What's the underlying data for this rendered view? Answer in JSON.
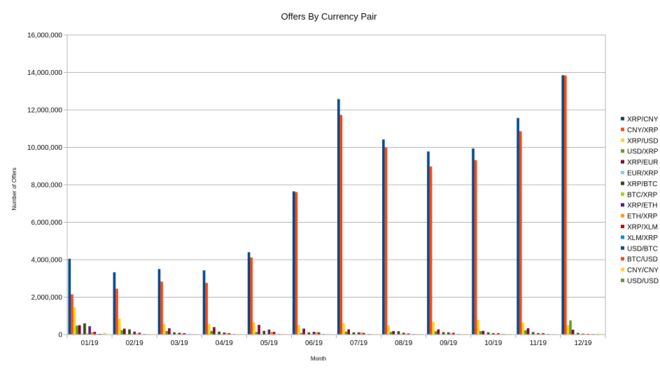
{
  "chart_data": {
    "type": "bar",
    "title": "Offers By Currency Pair",
    "xlabel": "Month",
    "ylabel": "Number of Offers",
    "ylim": [
      0,
      16000000
    ],
    "yticks": [
      "0",
      "2,000,000",
      "4,000,000",
      "6,000,000",
      "8,000,000",
      "10,000,000",
      "12,000,000",
      "14,000,000",
      "16,000,000"
    ],
    "categories": [
      "01/19",
      "02/19",
      "03/19",
      "04/19",
      "05/19",
      "06/19",
      "07/19",
      "08/19",
      "09/19",
      "10/19",
      "11/19",
      "12/19"
    ],
    "grid": "horizontal",
    "legend_position": "right",
    "series": [
      {
        "name": "XRP/CNY",
        "color": "#004586",
        "values": [
          4050000,
          3330000,
          3500000,
          3430000,
          4400000,
          7650000,
          12580000,
          10420000,
          9780000,
          9940000,
          11570000,
          13850000
        ]
      },
      {
        "name": "CNY/XRP",
        "color": "#ff420e",
        "values": [
          2150000,
          2450000,
          2830000,
          2760000,
          4120000,
          7610000,
          11730000,
          9990000,
          8980000,
          9320000,
          10860000,
          13840000
        ]
      },
      {
        "name": "XRP/USD",
        "color": "#ffd320",
        "values": [
          1450000,
          860000,
          550000,
          560000,
          650000,
          520000,
          600000,
          500000,
          680000,
          780000,
          650000,
          490000
        ]
      },
      {
        "name": "USD/XRP",
        "color": "#579d1c",
        "values": [
          480000,
          240000,
          190000,
          200000,
          140000,
          90000,
          160000,
          140000,
          180000,
          190000,
          230000,
          760000
        ]
      },
      {
        "name": "XRP/EUR",
        "color": "#7e0021",
        "values": [
          500000,
          320000,
          340000,
          400000,
          520000,
          320000,
          280000,
          190000,
          280000,
          200000,
          340000,
          260000
        ]
      },
      {
        "name": "EUR/XRP",
        "color": "#83caff",
        "values": [
          40000,
          30000,
          30000,
          30000,
          30000,
          20000,
          30000,
          20000,
          20000,
          20000,
          20000,
          20000
        ]
      },
      {
        "name": "XRP/BTC",
        "color": "#314004",
        "values": [
          600000,
          280000,
          120000,
          160000,
          200000,
          120000,
          120000,
          180000,
          130000,
          120000,
          130000,
          90000
        ]
      },
      {
        "name": "BTC/XRP",
        "color": "#aecf00",
        "values": [
          60000,
          40000,
          30000,
          30000,
          30000,
          30000,
          30000,
          30000,
          30000,
          30000,
          30000,
          30000
        ]
      },
      {
        "name": "XRP/ETH",
        "color": "#4b1f6f",
        "values": [
          450000,
          160000,
          100000,
          110000,
          270000,
          150000,
          120000,
          100000,
          120000,
          80000,
          80000,
          50000
        ]
      },
      {
        "name": "ETH/XRP",
        "color": "#ff950e",
        "values": [
          120000,
          50000,
          60000,
          70000,
          140000,
          130000,
          110000,
          50000,
          60000,
          40000,
          40000,
          30000
        ]
      },
      {
        "name": "XRP/XLM",
        "color": "#c5000b",
        "values": [
          150000,
          100000,
          80000,
          80000,
          150000,
          120000,
          90000,
          60000,
          100000,
          80000,
          80000,
          40000
        ]
      },
      {
        "name": "XLM/XRP",
        "color": "#0084d1",
        "values": [
          30000,
          20000,
          20000,
          20000,
          20000,
          20000,
          20000,
          20000,
          20000,
          20000,
          20000,
          20000
        ]
      },
      {
        "name": "USD/BTC",
        "color": "#004586",
        "values": [
          40000,
          30000,
          30000,
          30000,
          30000,
          30000,
          30000,
          30000,
          30000,
          30000,
          30000,
          30000
        ]
      },
      {
        "name": "BTC/USD",
        "color": "#ff420e",
        "values": [
          30000,
          20000,
          20000,
          20000,
          20000,
          20000,
          20000,
          20000,
          20000,
          20000,
          20000,
          20000
        ]
      },
      {
        "name": "CNY/CNY",
        "color": "#ffd320",
        "values": [
          90000,
          30000,
          30000,
          30000,
          30000,
          30000,
          30000,
          30000,
          30000,
          30000,
          30000,
          50000
        ]
      },
      {
        "name": "USD/USD",
        "color": "#579d1c",
        "values": [
          20000,
          10000,
          10000,
          10000,
          10000,
          10000,
          10000,
          10000,
          10000,
          10000,
          10000,
          10000
        ]
      }
    ]
  }
}
